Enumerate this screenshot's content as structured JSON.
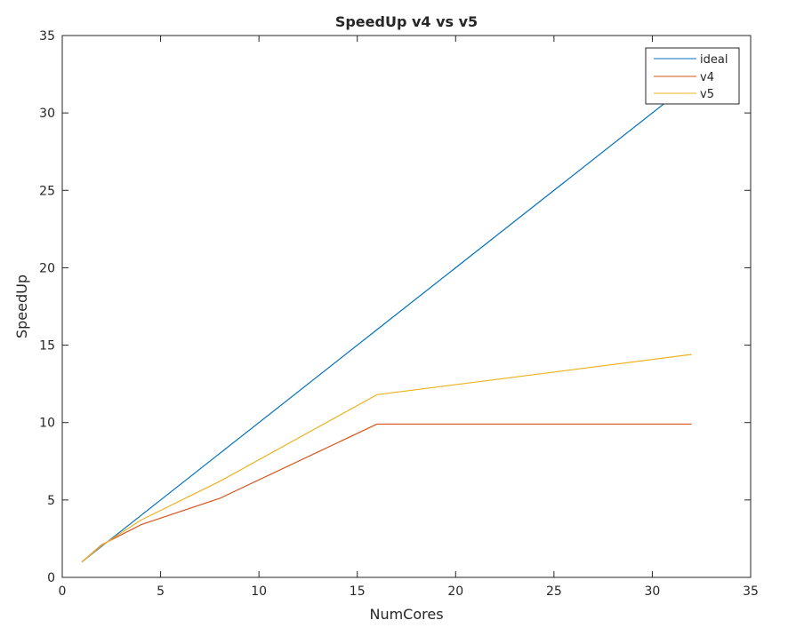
{
  "chart_data": {
    "type": "line",
    "title": "SpeedUp v4 vs v5",
    "xlabel": "NumCores",
    "ylabel": "SpeedUp",
    "xlim": [
      0,
      35
    ],
    "ylim": [
      0,
      35
    ],
    "xticks": [
      0,
      5,
      10,
      15,
      20,
      25,
      30,
      35
    ],
    "yticks": [
      0,
      5,
      10,
      15,
      20,
      25,
      30,
      35
    ],
    "grid": false,
    "legend_position": "top-right",
    "series": [
      {
        "name": "ideal",
        "color": "#0072BD",
        "x": [
          1,
          2,
          4,
          8,
          16,
          32
        ],
        "y": [
          1,
          2,
          4,
          8,
          16,
          32
        ]
      },
      {
        "name": "v4",
        "color": "#D95319",
        "x": [
          1,
          2,
          4,
          8,
          16,
          32
        ],
        "y": [
          1,
          2.1,
          3.4,
          5.1,
          9.9,
          9.9
        ]
      },
      {
        "name": "v5",
        "color": "#EDB120",
        "x": [
          1,
          2,
          4,
          8,
          16,
          32
        ],
        "y": [
          1,
          2.05,
          3.7,
          6.2,
          11.8,
          14.4
        ]
      }
    ]
  }
}
